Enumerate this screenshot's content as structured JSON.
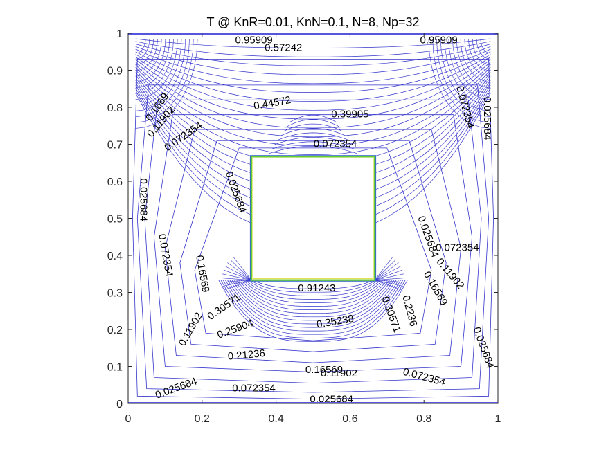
{
  "chart_data": {
    "type": "contour",
    "title": "T @ KnR=0.01, KnN=0.1, N=8, Np=32",
    "xlabel": "",
    "ylabel": "",
    "xlim": [
      0,
      1
    ],
    "ylim": [
      0,
      1
    ],
    "x_ticks": [
      "0",
      "0.2",
      "0.4",
      "0.6",
      "0.8",
      "1"
    ],
    "y_ticks": [
      "0",
      "0.1",
      "0.2",
      "0.3",
      "0.4",
      "0.5",
      "0.6",
      "0.7",
      "0.8",
      "0.9",
      "1"
    ],
    "grid": false,
    "line_color": "#3333cc",
    "obstacle": {
      "x": [
        0.3333,
        0.6667
      ],
      "y": [
        0.3333,
        0.6667
      ],
      "edge_color": "#66cc33"
    },
    "contour_labels": [
      {
        "text": "0.025684",
        "x": 0.04,
        "y": 0.55,
        "angle": -90
      },
      {
        "text": "0.072354",
        "x": 0.1,
        "y": 0.4,
        "angle": -80
      },
      {
        "text": "0.025684",
        "x": 0.29,
        "y": 0.57,
        "angle": -70
      },
      {
        "text": "0.072354",
        "x": 0.15,
        "y": 0.72,
        "angle": 35
      },
      {
        "text": "0.11902",
        "x": 0.09,
        "y": 0.76,
        "angle": 50
      },
      {
        "text": "0.1669",
        "x": 0.08,
        "y": 0.8,
        "angle": 55
      },
      {
        "text": "0.16569",
        "x": 0.2,
        "y": 0.35,
        "angle": -80
      },
      {
        "text": "0.11902",
        "x": 0.17,
        "y": 0.2,
        "angle": 60
      },
      {
        "text": "0.30571",
        "x": 0.26,
        "y": 0.26,
        "angle": 35
      },
      {
        "text": "0.25904",
        "x": 0.29,
        "y": 0.2,
        "angle": 20
      },
      {
        "text": "0.21236",
        "x": 0.32,
        "y": 0.13,
        "angle": 5
      },
      {
        "text": "0.16569",
        "x": 0.53,
        "y": 0.09,
        "angle": 0
      },
      {
        "text": "0.11902",
        "x": 0.57,
        "y": 0.08,
        "angle": 0
      },
      {
        "text": "0.072354",
        "x": 0.34,
        "y": 0.04,
        "angle": 0
      },
      {
        "text": "0.072354",
        "x": 0.8,
        "y": 0.07,
        "angle": -15
      },
      {
        "text": "0.025684",
        "x": 0.13,
        "y": 0.04,
        "angle": 20
      },
      {
        "text": "0.025684",
        "x": 0.55,
        "y": 0.01,
        "angle": 0
      },
      {
        "text": "0.025684",
        "x": 0.96,
        "y": 0.15,
        "angle": -70
      },
      {
        "text": "0.025684",
        "x": 0.81,
        "y": 0.45,
        "angle": -70
      },
      {
        "text": "0.072354",
        "x": 0.89,
        "y": 0.42,
        "angle": 0
      },
      {
        "text": "0.11902",
        "x": 0.87,
        "y": 0.35,
        "angle": -50
      },
      {
        "text": "0.16569",
        "x": 0.83,
        "y": 0.31,
        "angle": -60
      },
      {
        "text": "0.30571",
        "x": 0.71,
        "y": 0.24,
        "angle": -70
      },
      {
        "text": "0.2236",
        "x": 0.76,
        "y": 0.25,
        "angle": -75
      },
      {
        "text": "0.025684",
        "x": 0.97,
        "y": 0.77,
        "angle": -90
      },
      {
        "text": "0.072354",
        "x": 0.91,
        "y": 0.8,
        "angle": -75
      },
      {
        "text": "0.39905",
        "x": 0.6,
        "y": 0.78,
        "angle": 0
      },
      {
        "text": "0.072354",
        "x": 0.56,
        "y": 0.7,
        "angle": 0
      },
      {
        "text": "0.95909",
        "x": 0.34,
        "y": 0.98,
        "angle": 0
      },
      {
        "text": "0.95909",
        "x": 0.84,
        "y": 0.98,
        "angle": 0
      },
      {
        "text": "0.44572",
        "x": 0.39,
        "y": 0.81,
        "angle": 10
      },
      {
        "text": "0.57242",
        "x": 0.42,
        "y": 0.96,
        "angle": 0
      },
      {
        "text": "0.91243",
        "x": 0.51,
        "y": 0.31,
        "angle": 0
      },
      {
        "text": "0.35238",
        "x": 0.56,
        "y": 0.22,
        "angle": 10
      }
    ]
  }
}
